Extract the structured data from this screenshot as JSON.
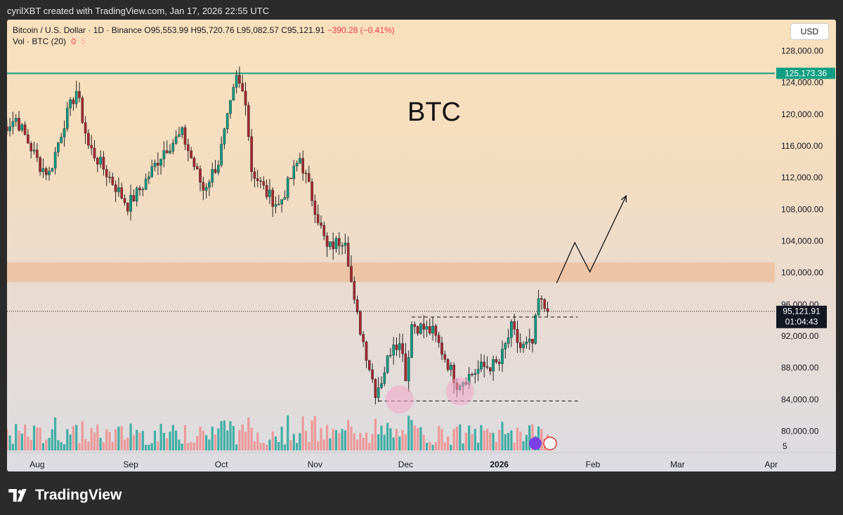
{
  "credit_line": "cyrilXBT created with TradingView.com, Jan 17, 2026 22:55 UTC",
  "header": {
    "symbol": "Bitcoin / U.S. Dollar · 1D · Binance",
    "open": "O95,553.99",
    "high": "H95,720.76",
    "low": "L95,082.57",
    "close": "C95,121.91",
    "change": "−390.28 (−0.41%)",
    "vol_label": "Vol · BTC (20)",
    "vol_value": "0",
    "vol_ma": "5"
  },
  "currency_button": "USD",
  "annotation": "BTC",
  "last_price_label": "95,121.91",
  "countdown_label": "01:04:43",
  "ath_label": "125,173.36",
  "volume_axis_label": "5",
  "footer_brand": "TradingView",
  "colors": {
    "up": "#089981",
    "down": "#a3282f",
    "vol_up": "#26a69a",
    "vol_down": "#ef8c8c",
    "ath_line": "#0f9e83",
    "zone": "#f0b890"
  },
  "chart_data": {
    "type": "candlestick",
    "title": "",
    "ylim": [
      78000,
      130000
    ],
    "y_ticks": [
      80000,
      84000,
      88000,
      92000,
      96000,
      100000,
      104000,
      108000,
      112000,
      116000,
      120000,
      124000,
      128000
    ],
    "x_ticks": [
      {
        "label": "Aug",
        "date": "2025-08-01"
      },
      {
        "label": "Sep",
        "date": "2025-09-01"
      },
      {
        "label": "Oct",
        "date": "2025-10-01"
      },
      {
        "label": "Nov",
        "date": "2025-11-01"
      },
      {
        "label": "Dec",
        "date": "2025-12-01"
      },
      {
        "label": "2026",
        "date": "2026-01-01"
      },
      {
        "label": "Feb",
        "date": "2026-02-01"
      },
      {
        "label": "Mar",
        "date": "2026-03-01"
      },
      {
        "label": "Apr",
        "date": "2026-04-01"
      }
    ],
    "waypoints": [
      {
        "date": "2025-07-20",
        "price": 118000
      },
      {
        "date": "2025-07-25",
        "price": 119500
      },
      {
        "date": "2025-08-02",
        "price": 113500
      },
      {
        "date": "2025-08-05",
        "price": 112500
      },
      {
        "date": "2025-08-10",
        "price": 119000
      },
      {
        "date": "2025-08-14",
        "price": 123000
      },
      {
        "date": "2025-08-18",
        "price": 116000
      },
      {
        "date": "2025-08-25",
        "price": 112000
      },
      {
        "date": "2025-08-31",
        "price": 108500
      },
      {
        "date": "2025-09-05",
        "price": 111000
      },
      {
        "date": "2025-09-12",
        "price": 115500
      },
      {
        "date": "2025-09-18",
        "price": 117500
      },
      {
        "date": "2025-09-25",
        "price": 110500
      },
      {
        "date": "2025-09-30",
        "price": 114000
      },
      {
        "date": "2025-10-06",
        "price": 124500
      },
      {
        "date": "2025-10-09",
        "price": 122000
      },
      {
        "date": "2025-10-11",
        "price": 113000
      },
      {
        "date": "2025-10-16",
        "price": 110000
      },
      {
        "date": "2025-10-20",
        "price": 108500
      },
      {
        "date": "2025-10-27",
        "price": 114500
      },
      {
        "date": "2025-10-31",
        "price": 109500
      },
      {
        "date": "2025-11-05",
        "price": 103000
      },
      {
        "date": "2025-11-11",
        "price": 104500
      },
      {
        "date": "2025-11-14",
        "price": 96000
      },
      {
        "date": "2025-11-21",
        "price": 85000
      },
      {
        "date": "2025-11-23",
        "price": 86500
      },
      {
        "date": "2025-11-27",
        "price": 91500
      },
      {
        "date": "2025-11-30",
        "price": 90500
      },
      {
        "date": "2025-12-01",
        "price": 86500
      },
      {
        "date": "2025-12-03",
        "price": 93500
      },
      {
        "date": "2025-12-10",
        "price": 92500
      },
      {
        "date": "2025-12-15",
        "price": 88500
      },
      {
        "date": "2025-12-18",
        "price": 86000
      },
      {
        "date": "2025-12-26",
        "price": 88000
      },
      {
        "date": "2026-01-01",
        "price": 88500
      },
      {
        "date": "2026-01-05",
        "price": 93000
      },
      {
        "date": "2026-01-08",
        "price": 90500
      },
      {
        "date": "2026-01-12",
        "price": 91000
      },
      {
        "date": "2026-01-14",
        "price": 96500
      },
      {
        "date": "2026-01-17",
        "price": 95121.91
      }
    ],
    "ath_level": 125173.36,
    "current_price": 95121.91,
    "resistance_zone": [
      98800,
      101300
    ],
    "levels": [
      {
        "name": "neckline",
        "price": 94400,
        "from": "2025-12-03",
        "to": "2026-01-27"
      },
      {
        "name": "support",
        "price": 83800,
        "from": "2025-11-22",
        "to": "2026-01-27"
      }
    ],
    "projection": [
      {
        "date": "2026-01-20",
        "price": 98700
      },
      {
        "date": "2026-01-26",
        "price": 103800
      },
      {
        "date": "2026-01-31",
        "price": 100100
      },
      {
        "date": "2026-02-12",
        "price": 109700
      }
    ],
    "highlights": [
      {
        "date": "2025-11-29",
        "price": 84000
      },
      {
        "date": "2025-12-19",
        "price": 85000
      }
    ]
  }
}
